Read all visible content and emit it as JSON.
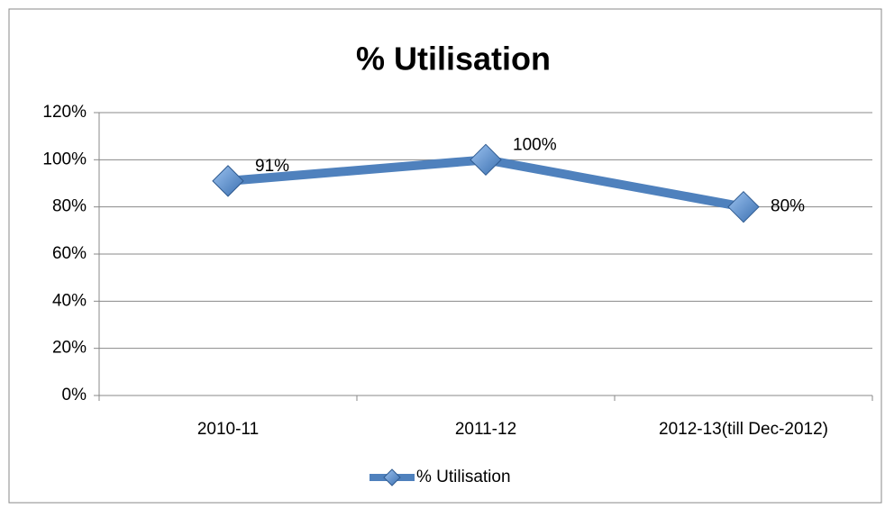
{
  "chart_data": {
    "type": "line",
    "title": "% Utilisation",
    "categories": [
      "2010-11",
      "2011-12",
      "2012-13(till Dec-2012)"
    ],
    "series": [
      {
        "name": "% Utilisation",
        "color": "#4f81bd",
        "values": [
          91,
          100,
          80
        ],
        "value_labels": [
          "91%",
          "100%",
          "80%"
        ]
      }
    ],
    "ylim": [
      0,
      120
    ],
    "yticks": [
      {
        "value": 0,
        "label": "0%"
      },
      {
        "value": 20,
        "label": "20%"
      },
      {
        "value": 40,
        "label": "40%"
      },
      {
        "value": 60,
        "label": "60%"
      },
      {
        "value": 80,
        "label": "80%"
      },
      {
        "value": 100,
        "label": "100%"
      },
      {
        "value": 120,
        "label": "120%"
      }
    ],
    "grid": true,
    "legend": "bottom"
  }
}
